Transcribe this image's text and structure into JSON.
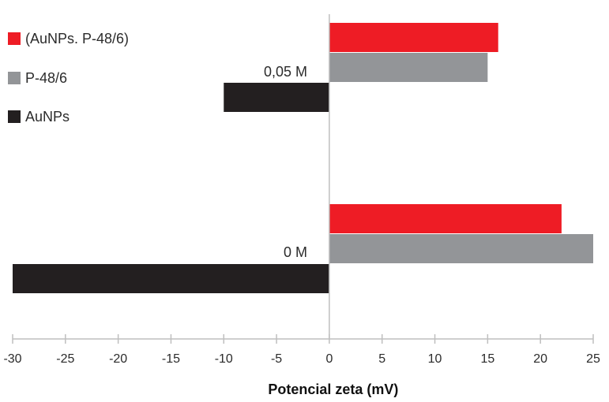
{
  "chart_data": {
    "type": "bar",
    "orientation": "horizontal",
    "title": "",
    "xlabel": "Potencial zeta (mV)",
    "ylabel": "",
    "xlim": [
      -30,
      25
    ],
    "x_ticks": [
      -30,
      -25,
      -20,
      -15,
      -10,
      -5,
      0,
      5,
      10,
      15,
      20,
      25
    ],
    "x_tick_labels": [
      "-30",
      "-25",
      "-20",
      "-15",
      "-10",
      "-5",
      "0",
      "5",
      "10",
      "15",
      "20",
      "25"
    ],
    "grid": false,
    "legend_position": "top-left",
    "categories": [
      "0,05 M",
      "0 M"
    ],
    "series": [
      {
        "name": "(AuNPs. P-48/6)",
        "color": "#ee1c25",
        "values": [
          16,
          22
        ]
      },
      {
        "name": "P-48/6",
        "color": "#939598",
        "values": [
          15,
          25
        ]
      },
      {
        "name": "AuNPs",
        "color": "#231f20",
        "values": [
          -10,
          -30
        ]
      }
    ]
  }
}
